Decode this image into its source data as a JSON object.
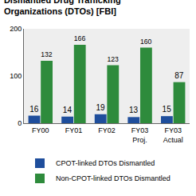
{
  "chart_data": {
    "type": "bar",
    "title": "Dismantled Drug Trafficking Organizations (DTOs) [FBI]",
    "categories": [
      "FY00",
      "FY01",
      "FY02",
      "FY03 Proj.",
      "FY03 Actual"
    ],
    "series": [
      {
        "name": "CPOT-linked DTOs Dismantled",
        "color": "#1f4e9c",
        "values": [
          16,
          14,
          19,
          13,
          15
        ]
      },
      {
        "name": "Non-CPOT-linked DTOs Dismantled",
        "color": "#2e8b3c",
        "values": [
          132,
          166,
          123,
          160,
          87
        ]
      }
    ],
    "ylim": [
      0,
      200
    ],
    "yticks": [
      0,
      100,
      200
    ],
    "grid": false,
    "legend": "bottom",
    "data_labels": true
  }
}
